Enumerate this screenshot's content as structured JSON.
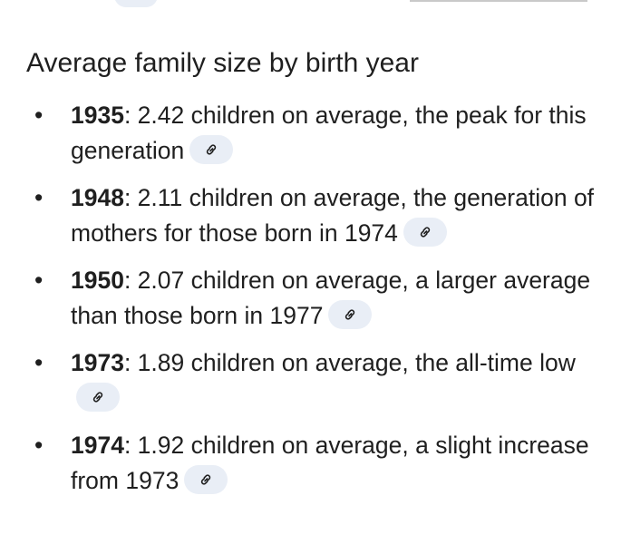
{
  "heading": "Average family size by birth year",
  "items": [
    {
      "year": "1935",
      "text": ": 2.42 children on average, the peak for this generation"
    },
    {
      "year": "1948",
      "text": ": 2.11 children on average, the generation of mothers for those born in 1974"
    },
    {
      "year": "1950",
      "text": ": 2.07 children on average, a larger average than those born in 1977"
    },
    {
      "year": "1973",
      "text": ": 1.89 children on average, the all-time low"
    },
    {
      "year": "1974",
      "text": ": 1.92 children on average, a slight increase from 1973"
    }
  ]
}
